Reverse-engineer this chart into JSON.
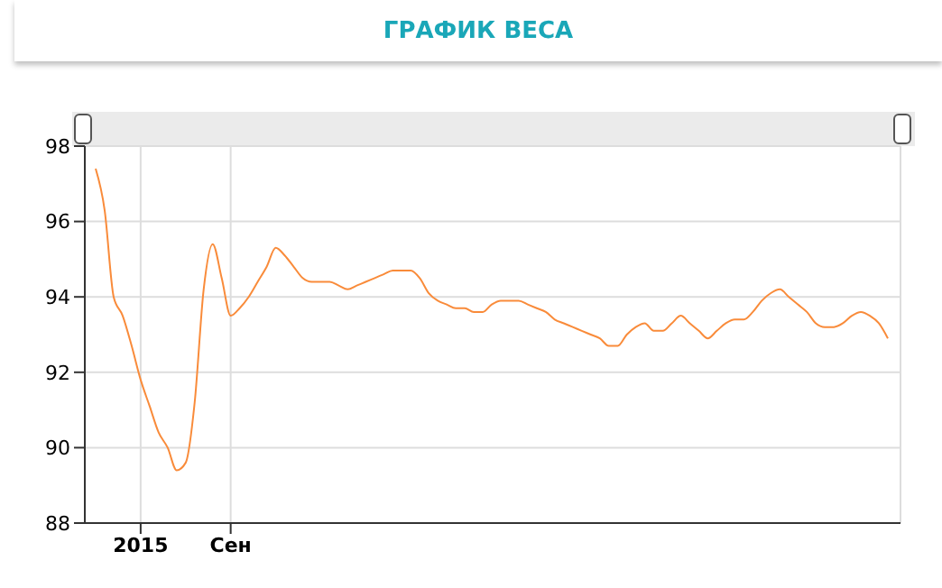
{
  "chart_data": {
    "type": "line",
    "title": "ГРАФИК ВЕСА",
    "categories": [
      null,
      null,
      null,
      null,
      null,
      "2015",
      null,
      null,
      null,
      null,
      null,
      null,
      null,
      null,
      null,
      "Сен",
      null,
      null,
      null,
      null,
      null,
      null,
      null,
      null,
      null,
      null,
      null,
      null,
      null,
      null,
      null,
      null,
      null,
      null,
      null,
      null,
      null,
      null,
      null,
      null,
      null,
      null,
      null,
      null,
      null,
      null,
      null,
      null,
      null,
      null,
      null,
      null,
      null,
      null,
      null,
      null,
      null,
      null,
      null,
      null,
      null,
      null,
      null,
      null,
      null,
      null,
      null,
      null,
      null,
      null,
      null,
      null,
      null,
      null,
      null,
      null,
      null,
      null,
      null,
      null,
      null,
      null,
      null,
      null,
      null,
      null,
      null,
      null,
      null
    ],
    "series": [
      {
        "color": "#f98b3a",
        "values": [
          97.4,
          96.3,
          94.0,
          93.5,
          92.7,
          91.8,
          91.1,
          90.4,
          90.0,
          89.4,
          89.6,
          91.2,
          94.2,
          95.4,
          94.5,
          93.5,
          93.7,
          94.0,
          94.4,
          94.8,
          95.3,
          95.1,
          94.8,
          94.5,
          94.4,
          94.4,
          94.4,
          94.3,
          94.2,
          94.3,
          94.4,
          94.5,
          94.6,
          94.7,
          94.7,
          94.7,
          94.5,
          94.1,
          93.9,
          93.8,
          93.7,
          93.7,
          93.6,
          93.6,
          93.8,
          93.9,
          93.9,
          93.9,
          93.8,
          93.7,
          93.6,
          93.4,
          93.3,
          93.2,
          93.1,
          93.0,
          92.9,
          92.7,
          92.7,
          93.0,
          93.2,
          93.3,
          93.1,
          93.1,
          93.3,
          93.5,
          93.3,
          93.1,
          92.9,
          93.1,
          93.3,
          93.4,
          93.4,
          93.6,
          93.9,
          94.1,
          94.2,
          94.0,
          93.8,
          93.6,
          93.3,
          93.2,
          93.2,
          93.3,
          93.5,
          93.6,
          93.5,
          93.3,
          92.9
        ]
      }
    ],
    "ylim": [
      88,
      98
    ],
    "yticks": [
      88,
      90,
      92,
      94,
      96,
      98
    ],
    "grid": true,
    "legend": false,
    "marker": "none",
    "line_style": "solid"
  }
}
